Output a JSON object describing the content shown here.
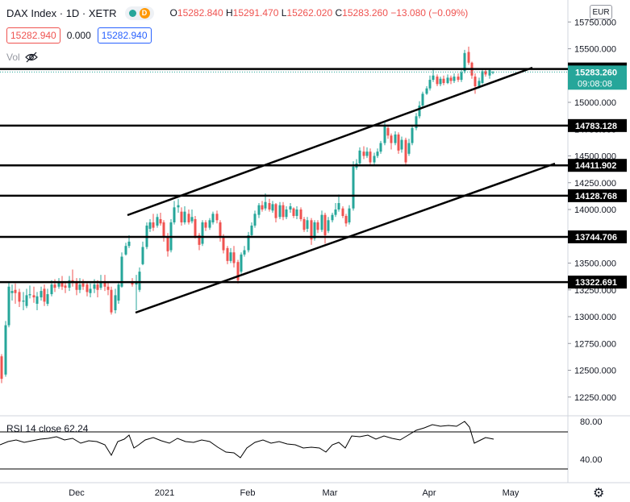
{
  "header": {
    "symbol": "DAX Index · 1D · XETR",
    "badge_letter": "D",
    "open_label": "O",
    "open": "15282.840",
    "high_label": "H",
    "high": "15291.470",
    "low_label": "L",
    "low": "15262.020",
    "close_label": "C",
    "close": "15283.260",
    "change": "−13.080 (−0.09%)"
  },
  "order": {
    "sell_price": "15282.940",
    "spread": "0.000",
    "buy_price": "15282.940"
  },
  "volume": {
    "label": "Vol"
  },
  "currency": "EUR",
  "price_axis": {
    "ticks": [
      "15750.000",
      "15500.000",
      "15000.000",
      "14750.000",
      "14500.000",
      "14250.000",
      "14000.000",
      "13750.000",
      "13500.000",
      "13250.000",
      "13000.000",
      "12750.000",
      "12500.000",
      "12250.000"
    ],
    "levels": [
      "15311.017",
      "14783.128",
      "14411.902",
      "14128.768",
      "13744.706",
      "13322.691"
    ],
    "current_price": "15283.260",
    "countdown": "09:08:08"
  },
  "time_axis": {
    "labels": [
      "Dec",
      "2021",
      "Feb",
      "Mar",
      "Apr",
      "May"
    ]
  },
  "rsi": {
    "label": "RSI 14 close",
    "value": "62.24",
    "ticks": [
      "80.00",
      "40.00"
    ]
  },
  "colors": {
    "up": "#26a69a",
    "down": "#ef5350",
    "line": "#000000",
    "rsi": "#000000"
  },
  "icons": {
    "visibility": "eye-off-icon",
    "settings": "gear-icon"
  }
}
